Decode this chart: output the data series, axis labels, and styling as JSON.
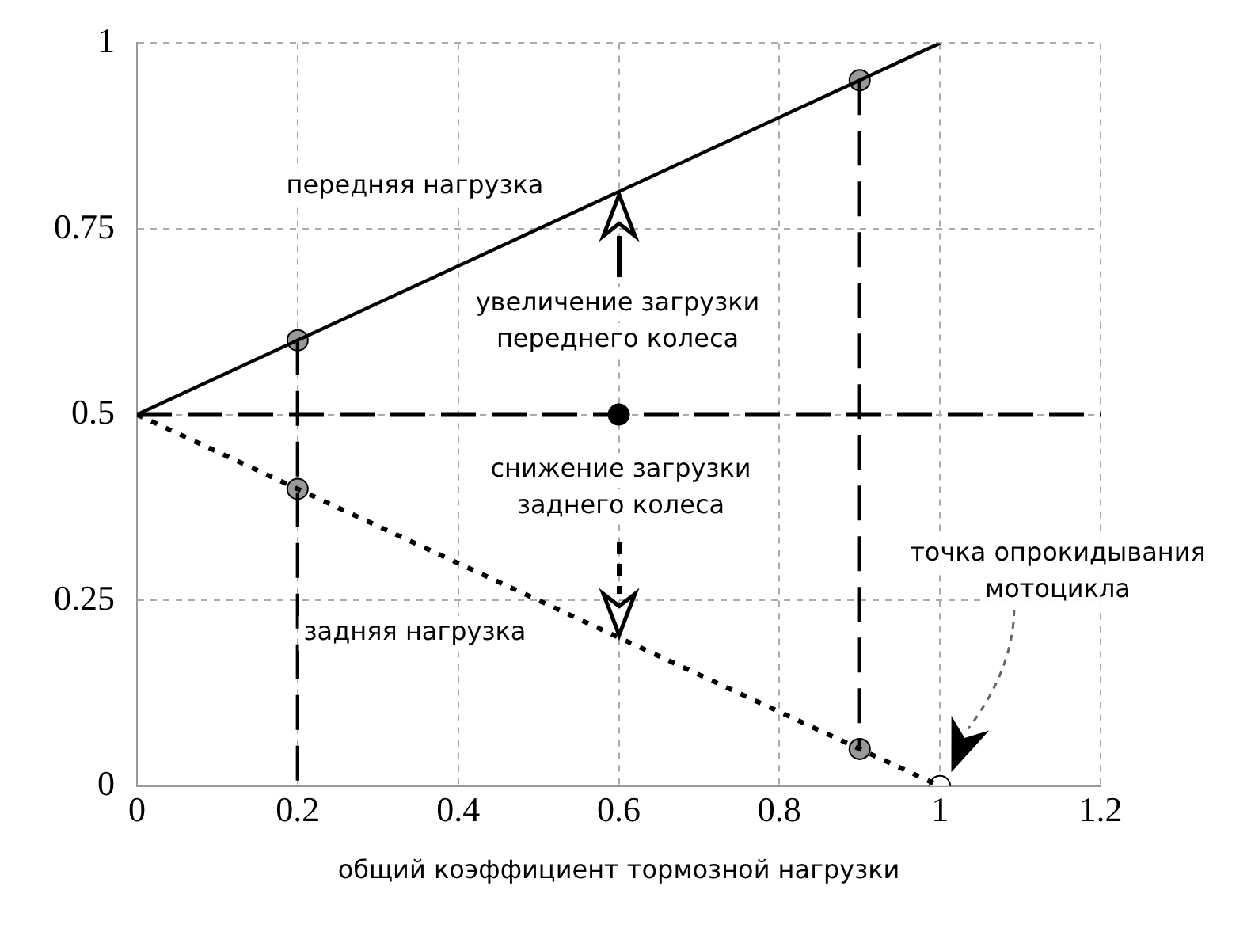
{
  "chart_data": {
    "type": "line",
    "xlabel": "общий коэффициент тормозной нагрузки",
    "xlim": [
      0,
      1.2
    ],
    "xticks": [
      0,
      0.2,
      0.4,
      0.6,
      0.8,
      1,
      1.2
    ],
    "ylim": [
      0,
      1
    ],
    "yticks": [
      0,
      0.25,
      0.5,
      0.75,
      1
    ],
    "grid": true,
    "legend": false,
    "series": [
      {
        "type": "line",
        "x": [
          0,
          1
        ],
        "values": [
          0.5,
          1
        ],
        "color": "#000000",
        "line_style": "solid"
      },
      {
        "type": "line",
        "x": [
          0,
          1
        ],
        "values": [
          0.5,
          0
        ],
        "color": "#000000",
        "line_style": "dotted"
      },
      {
        "type": "line",
        "x": [
          0.2,
          0.2
        ],
        "values": [
          0.6,
          0
        ],
        "color": "#000000",
        "line_style": "dashed"
      },
      {
        "type": "line",
        "x": [
          0.9,
          0.9
        ],
        "values": [
          0.95,
          0.05
        ],
        "color": "#000000",
        "line_style": "dashed"
      },
      {
        "type": "scatter",
        "x": [
          0.2,
          0.9,
          0.2,
          0.9,
          0.6,
          1
        ],
        "values": [
          0.6,
          0.95,
          0.4,
          0.05,
          0.5,
          0
        ],
        "colors": [
          "#999999",
          "#999999",
          "#999999",
          "#999999",
          "#000000",
          "#ffffff"
        ],
        "marker": "circle"
      }
    ],
    "ref_lines": [
      {
        "axis": "y",
        "value": 0.5,
        "color": "#000000",
        "line_style": "dashed"
      }
    ],
    "annotations": [
      "передняя нагрузка",
      "увеличение загрузки\nпереднего колеса",
      "снижение загрузки\nзаднего колеса",
      "задняя нагрузка",
      "точка опрокидывания\nмотоцикла"
    ]
  }
}
